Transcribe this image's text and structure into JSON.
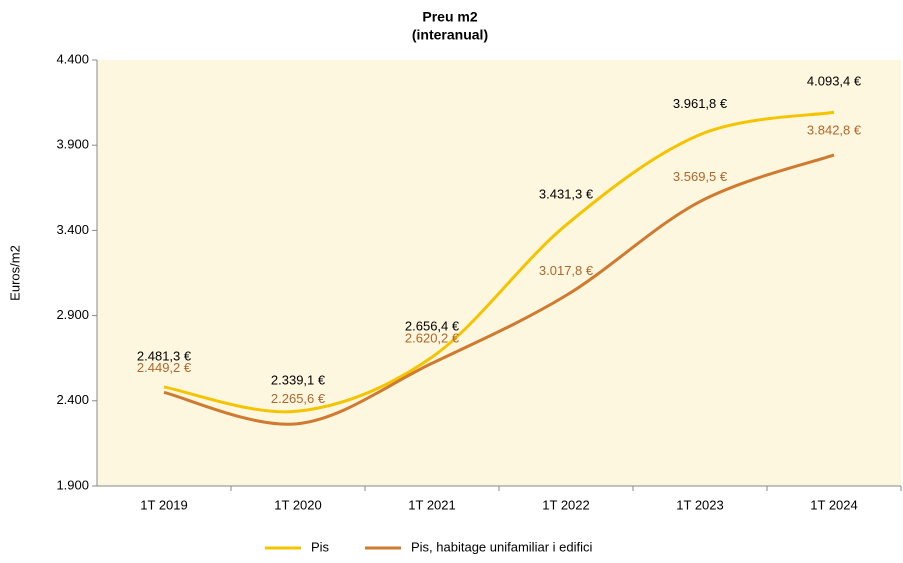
{
  "chart_data": {
    "type": "line",
    "title": "Preu m2",
    "subtitle": "(interanual)",
    "y_label": "Euros/m2",
    "categories": [
      "1T 2019",
      "1T 2020",
      "1T 2021",
      "1T 2022",
      "1T 2023",
      "1T 2024"
    ],
    "series": [
      {
        "name": "Pis",
        "color": "#f5c400",
        "label_color": "#000000",
        "values": [
          2481.3,
          2339.1,
          2656.4,
          3431.3,
          3961.8,
          4093.4
        ],
        "value_labels": [
          "2.481,3 €",
          "2.339,1 €",
          "2.656,4 €",
          "3.431,3 €",
          "3.961,8 €",
          "4.093,4 €"
        ]
      },
      {
        "name": "Pis, habitage unifamiliar i edifici",
        "color": "#d07a30",
        "label_color": "#b0662a",
        "values": [
          2449.2,
          2265.6,
          2620.2,
          3017.8,
          3569.5,
          3842.8
        ],
        "value_labels": [
          "2.449,2 €",
          "2.265,6 €",
          "2.620,2 €",
          "3.017,8 €",
          "3.569,5 €",
          "3.842,8 €"
        ]
      }
    ],
    "ylim": [
      1900,
      4400
    ],
    "yticks": [
      {
        "value": 1900,
        "label": "1.900"
      },
      {
        "value": 2400,
        "label": "2.400"
      },
      {
        "value": 2900,
        "label": "2.900"
      },
      {
        "value": 3400,
        "label": "3.400"
      },
      {
        "value": 3900,
        "label": "3.900"
      },
      {
        "value": 4400,
        "label": "4.400"
      }
    ],
    "smooth": true,
    "legend": "bottom",
    "background": "#fdf7df"
  }
}
